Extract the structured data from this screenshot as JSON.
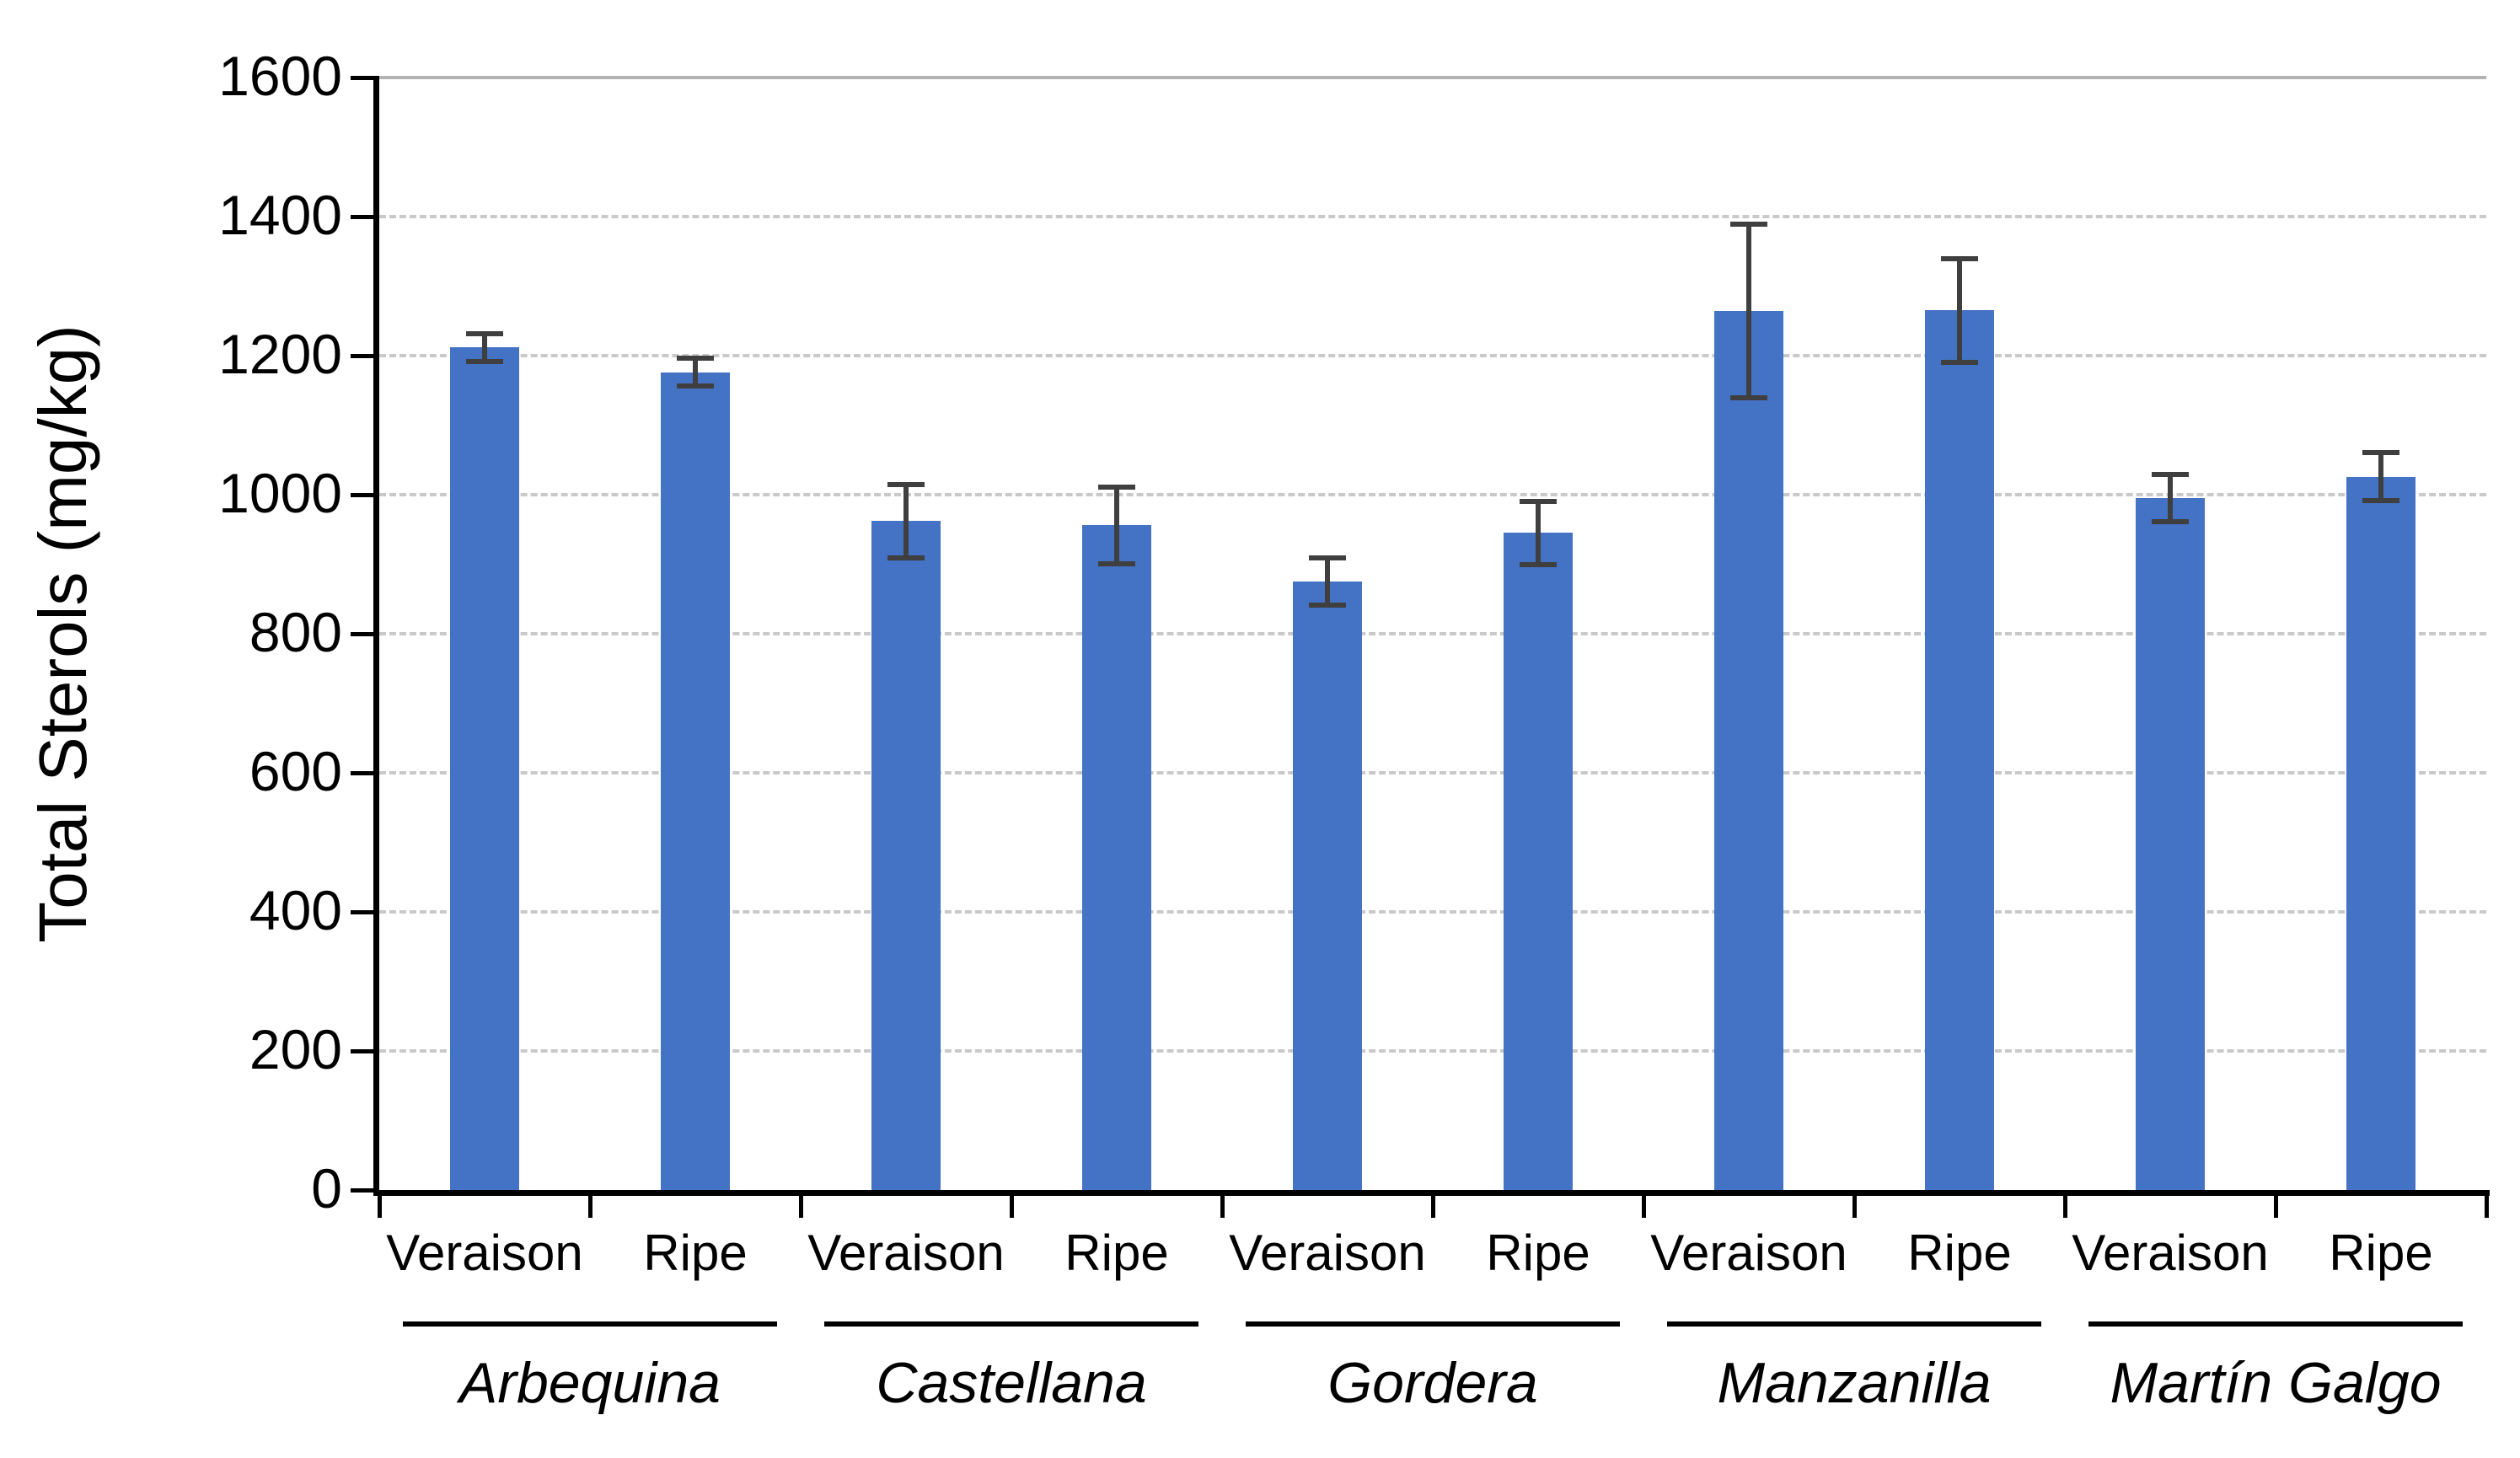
{
  "chart_data": {
    "type": "bar",
    "title": "",
    "ylabel": "Total Sterols (mg/kg)",
    "xlabel": "",
    "ylim": [
      0,
      1600
    ],
    "y_tick_step": 200,
    "y_tick_labels": [
      "0",
      "200",
      "400",
      "600",
      "800",
      "1000",
      "1200",
      "1400",
      "1600"
    ],
    "grid": "horizontal-dashed",
    "legend": false,
    "stage_labels": [
      "Veraison",
      "Ripe"
    ],
    "groups": [
      {
        "name": "Arbequina",
        "bars": [
          {
            "stage": "Veraison",
            "value": 1212,
            "error": 20
          },
          {
            "stage": "Ripe",
            "value": 1176,
            "error": 20
          }
        ]
      },
      {
        "name": "Castellana",
        "bars": [
          {
            "stage": "Veraison",
            "value": 962,
            "error": 53
          },
          {
            "stage": "Ripe",
            "value": 956,
            "error": 55
          }
        ]
      },
      {
        "name": "Gordera",
        "bars": [
          {
            "stage": "Veraison",
            "value": 875,
            "error": 34
          },
          {
            "stage": "Ripe",
            "value": 945,
            "error": 45
          }
        ]
      },
      {
        "name": "Manzanilla",
        "bars": [
          {
            "stage": "Veraison",
            "value": 1264,
            "error": 125
          },
          {
            "stage": "Ripe",
            "value": 1265,
            "error": 75
          }
        ]
      },
      {
        "name": "Martín Galgo",
        "bars": [
          {
            "stage": "Veraison",
            "value": 995,
            "error": 34
          },
          {
            "stage": "Ripe",
            "value": 1026,
            "error": 35
          }
        ]
      }
    ],
    "colors": {
      "bar": "#4472C4",
      "error_bar": "#3f3f3f",
      "gridline": "#c9c9c9",
      "top_gridline": "#b3b3b3",
      "axis": "#000000",
      "text": "#000000",
      "background": "#ffffff"
    }
  }
}
